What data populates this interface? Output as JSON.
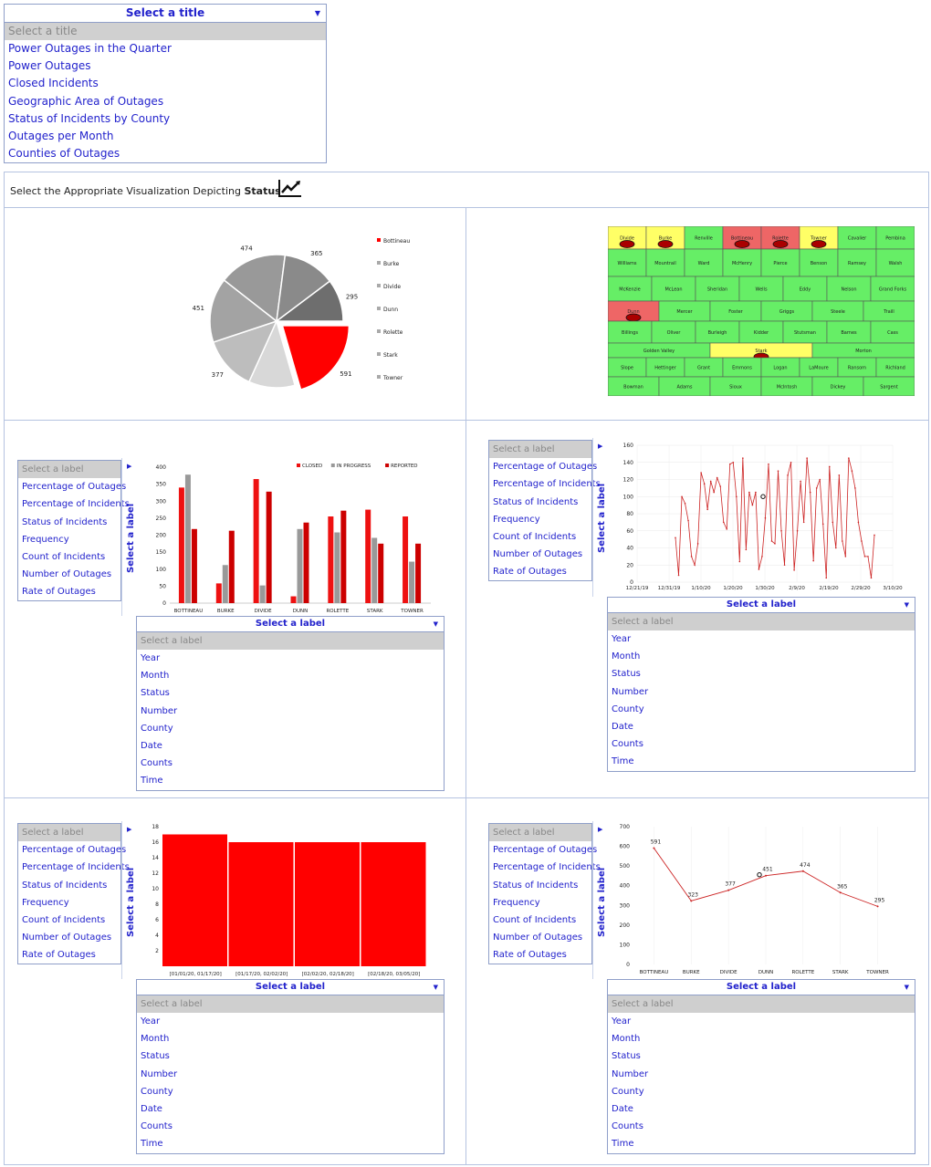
{
  "title_dropdown": {
    "header": "Select a title",
    "selected": "Select a title",
    "options": [
      "Power Outages in the Quarter",
      "Power Outages",
      "Closed Incidents",
      "Geographic Area of Outages",
      "Status of Incidents by County",
      "Outages per Month",
      "Counties of Outages"
    ]
  },
  "banner": {
    "prefix": "Select the Appropriate Visualization Depicting",
    "keyword": "Status",
    "icon": "trend-chart-icon"
  },
  "label_menu": {
    "header": "Select a label",
    "placeholder": "Select a label",
    "left_options": [
      "Percentage of Outages",
      "Percentage of Incidents",
      "Status of Incidents",
      "Frequency",
      "Count of Incidents",
      "Number of Outages",
      "Rate of Outages"
    ],
    "bottom_options": [
      "Year",
      "Month",
      "Status",
      "Number",
      "County",
      "Date",
      "Counts",
      "Time"
    ],
    "vertical_label": "Select a label"
  },
  "map": {
    "colors": {
      "green": "#66ee66",
      "yellow": "#ffff66",
      "red": "#ee6666"
    },
    "counties": [
      [
        "Divide",
        "yellow"
      ],
      [
        "Burke",
        "yellow"
      ],
      [
        "Renville",
        "green"
      ],
      [
        "Bottineau",
        "red"
      ],
      [
        "Rolette",
        "red"
      ],
      [
        "Towner",
        "yellow"
      ],
      [
        "Cavalier",
        "green"
      ],
      [
        "Pembina",
        "green"
      ],
      [
        "Williams",
        "green"
      ],
      [
        "Mountrail",
        "green"
      ],
      [
        "Ward",
        "green"
      ],
      [
        "McHenry",
        "green"
      ],
      [
        "Pierce",
        "green"
      ],
      [
        "Benson",
        "green"
      ],
      [
        "Ramsey",
        "green"
      ],
      [
        "Walsh",
        "green"
      ],
      [
        "McKenzie",
        "green"
      ],
      [
        "McLean",
        "green"
      ],
      [
        "Sheridan",
        "green"
      ],
      [
        "Wells",
        "green"
      ],
      [
        "Eddy",
        "green"
      ],
      [
        "Nelson",
        "green"
      ],
      [
        "Grand Forks",
        "green"
      ],
      [
        "Dunn",
        "red"
      ],
      [
        "Mercer",
        "green"
      ],
      [
        "Foster",
        "green"
      ],
      [
        "Griggs",
        "green"
      ],
      [
        "Steele",
        "green"
      ],
      [
        "Traill",
        "green"
      ],
      [
        "Billings",
        "green"
      ],
      [
        "Oliver",
        "green"
      ],
      [
        "Burleigh",
        "green"
      ],
      [
        "Kidder",
        "green"
      ],
      [
        "Stutsman",
        "green"
      ],
      [
        "Barnes",
        "green"
      ],
      [
        "Cass",
        "green"
      ],
      [
        "Golden Valley",
        "green"
      ],
      [
        "Stark",
        "yellow"
      ],
      [
        "Morton",
        "green"
      ],
      [
        "Slope",
        "green"
      ],
      [
        "Hettinger",
        "green"
      ],
      [
        "Grant",
        "green"
      ],
      [
        "Emmons",
        "green"
      ],
      [
        "Logan",
        "green"
      ],
      [
        "LaMoure",
        "green"
      ],
      [
        "Ransom",
        "green"
      ],
      [
        "Richland",
        "green"
      ],
      [
        "Bowman",
        "green"
      ],
      [
        "Adams",
        "green"
      ],
      [
        "Sioux",
        "green"
      ],
      [
        "McIntosh",
        "green"
      ],
      [
        "Dickey",
        "green"
      ],
      [
        "Sargent",
        "green"
      ]
    ]
  },
  "chart_data": [
    {
      "type": "pie",
      "title": "",
      "categories": [
        "Bottineau",
        "Burke",
        "Divide",
        "Dunn",
        "Rolette",
        "Stark",
        "Towner"
      ],
      "values": [
        591,
        323,
        377,
        451,
        474,
        365,
        295
      ],
      "colors": [
        "#ff0000",
        "#d8d8d8",
        "#bdbdbd",
        "#a3a3a3",
        "#999999",
        "#8a8a8a",
        "#6e6e6e"
      ],
      "legend_position": "right"
    },
    {
      "type": "bar",
      "title": "",
      "categories": [
        "BOTTINEAU",
        "BURKE",
        "DIVIDE",
        "DUNN",
        "ROLETTE",
        "STARK",
        "TOWNER"
      ],
      "series": [
        {
          "name": "CLOSED",
          "color": "#ee1111",
          "values": [
            340,
            58,
            365,
            20,
            255,
            275,
            255
          ]
        },
        {
          "name": "IN PROGRESS",
          "color": "#999999",
          "values": [
            378,
            112,
            52,
            218,
            208,
            192,
            122
          ]
        },
        {
          "name": "REPORTED",
          "color": "#cc0000",
          "values": [
            218,
            213,
            328,
            237,
            272,
            175,
            175
          ]
        }
      ],
      "ylim": [
        0,
        400
      ],
      "yticks": [
        0,
        50,
        100,
        150,
        200,
        250,
        300,
        350,
        400
      ],
      "legend_position": "top"
    },
    {
      "type": "line",
      "title": "",
      "xlabels": [
        "12/21/19",
        "12/31/19",
        "1/10/20",
        "1/20/20",
        "1/30/20",
        "2/9/20",
        "2/19/20",
        "2/29/20",
        "3/10/20"
      ],
      "values": [
        52,
        8,
        100,
        92,
        72,
        30,
        20,
        45,
        128,
        115,
        85,
        118,
        105,
        122,
        112,
        70,
        62,
        138,
        140,
        100,
        24,
        145,
        38,
        105,
        90,
        105,
        15,
        30,
        75,
        138,
        48,
        45,
        130,
        60,
        20,
        125,
        140,
        14,
        60,
        118,
        70,
        145,
        105,
        25,
        110,
        120,
        68,
        5,
        135,
        70,
        40,
        125,
        48,
        30,
        145,
        130,
        110,
        70,
        48,
        30,
        30,
        5,
        55
      ],
      "ylim": [
        0,
        160
      ],
      "yticks": [
        0,
        20,
        40,
        60,
        80,
        100,
        120,
        140,
        160
      ],
      "line_color": "#cc2222"
    },
    {
      "type": "bar",
      "title": "",
      "categories": [
        "[01/01/20, 01/17/20]",
        "[01/17/20, 02/02/20]",
        "[02/02/20, 02/18/20]",
        "[02/18/20, 03/05/20]"
      ],
      "values": [
        17,
        16,
        16,
        16
      ],
      "ylim": [
        0,
        18
      ],
      "yticks": [
        2,
        4,
        6,
        8,
        10,
        12,
        14,
        16,
        18
      ],
      "color": "#ff0000"
    },
    {
      "type": "line",
      "title": "",
      "categories": [
        "BOTTINEAU",
        "BURKE",
        "DIVIDE",
        "DUNN",
        "ROLETTE",
        "STARK",
        "TOWNER"
      ],
      "values": [
        591,
        323,
        377,
        451,
        474,
        365,
        295
      ],
      "ylim": [
        0,
        700
      ],
      "yticks": [
        0,
        100,
        200,
        300,
        400,
        500,
        600,
        700
      ],
      "line_color": "#cc2222"
    }
  ]
}
